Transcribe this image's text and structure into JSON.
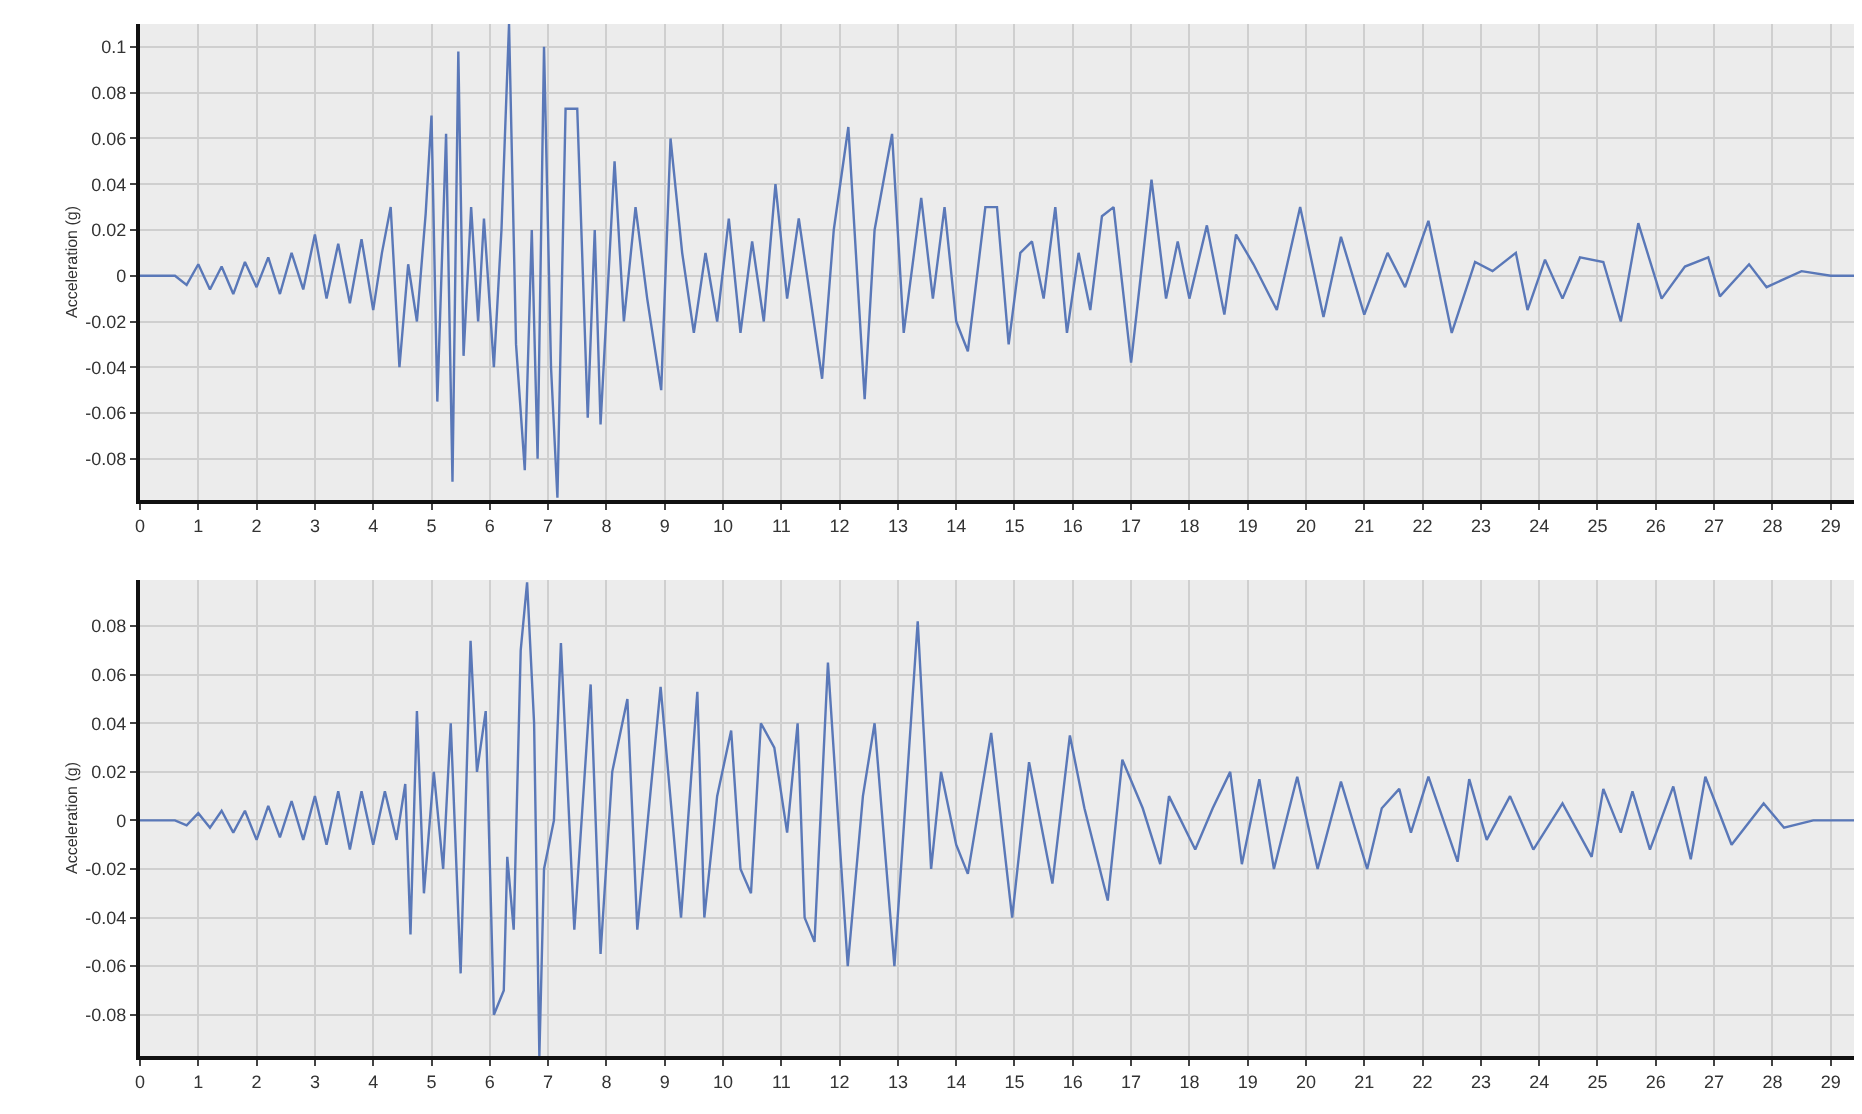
{
  "chart_data": [
    {
      "type": "line",
      "ylabel": "Acceleration (g)",
      "xlim": [
        0,
        29.4
      ],
      "xticks": [
        0,
        1,
        2,
        3,
        4,
        5,
        6,
        7,
        8,
        9,
        10,
        11,
        12,
        13,
        14,
        15,
        16,
        17,
        18,
        19,
        20,
        21,
        22,
        23,
        24,
        25,
        26,
        27,
        28,
        29
      ],
      "ylim": [
        -0.098,
        0.11
      ],
      "yticks": [
        -0.08,
        -0.06,
        -0.04,
        -0.02,
        0,
        0.02,
        0.04,
        0.06,
        0.08,
        0.1
      ],
      "grid": true,
      "x": [
        0,
        0.6,
        0.8,
        1.0,
        1.2,
        1.4,
        1.6,
        1.8,
        2.0,
        2.2,
        2.4,
        2.6,
        2.8,
        3.0,
        3.2,
        3.4,
        3.6,
        3.8,
        4.0,
        4.15,
        4.3,
        4.45,
        4.6,
        4.75,
        4.9,
        5.0,
        5.1,
        5.25,
        5.36,
        5.46,
        5.55,
        5.68,
        5.8,
        5.9,
        6.07,
        6.2,
        6.33,
        6.45,
        6.6,
        6.72,
        6.82,
        6.93,
        7.05,
        7.16,
        7.3,
        7.5,
        7.68,
        7.8,
        7.9,
        8.14,
        8.3,
        8.5,
        8.7,
        8.94,
        9.1,
        9.3,
        9.5,
        9.7,
        9.9,
        10.1,
        10.3,
        10.5,
        10.7,
        10.9,
        11.1,
        11.3,
        11.5,
        11.7,
        11.9,
        12.15,
        12.43,
        12.6,
        12.9,
        13.1,
        13.4,
        13.6,
        13.8,
        14.0,
        14.2,
        14.5,
        14.7,
        14.9,
        15.1,
        15.3,
        15.5,
        15.7,
        15.9,
        16.1,
        16.3,
        16.5,
        16.7,
        17.0,
        17.35,
        17.6,
        17.8,
        18.0,
        18.3,
        18.6,
        18.8,
        19.1,
        19.5,
        19.9,
        20.3,
        20.6,
        21.0,
        21.4,
        21.7,
        22.1,
        22.5,
        22.9,
        23.2,
        23.6,
        23.8,
        24.1,
        24.4,
        24.7,
        25.1,
        25.4,
        25.7,
        26.1,
        26.5,
        26.9,
        27.1,
        27.6,
        27.9,
        28.5,
        29.0,
        29.4
      ],
      "series": [
        {
          "color": "#5a78b8",
          "values": [
            0,
            0,
            -0.004,
            0.005,
            -0.006,
            0.004,
            -0.008,
            0.006,
            -0.005,
            0.008,
            -0.008,
            0.01,
            -0.006,
            0.018,
            -0.01,
            0.014,
            -0.012,
            0.016,
            -0.015,
            0.01,
            0.03,
            -0.04,
            0.005,
            -0.02,
            0.027,
            0.07,
            -0.055,
            0.062,
            -0.09,
            0.098,
            -0.035,
            0.03,
            -0.02,
            0.025,
            -0.04,
            0.02,
            0.11,
            -0.03,
            -0.085,
            0.02,
            -0.08,
            0.1,
            -0.04,
            -0.097,
            0.073,
            0.073,
            -0.062,
            0.02,
            -0.065,
            0.05,
            -0.02,
            0.03,
            -0.01,
            -0.05,
            0.06,
            0.01,
            -0.025,
            0.01,
            -0.02,
            0.025,
            -0.025,
            0.015,
            -0.02,
            0.04,
            -0.01,
            0.025,
            -0.01,
            -0.045,
            0.02,
            0.065,
            -0.054,
            0.02,
            0.062,
            -0.025,
            0.034,
            -0.01,
            0.03,
            -0.02,
            -0.033,
            0.03,
            0.03,
            -0.03,
            0.01,
            0.015,
            -0.01,
            0.03,
            -0.025,
            0.01,
            -0.015,
            0.026,
            0.03,
            -0.038,
            0.042,
            -0.01,
            0.015,
            -0.01,
            0.022,
            -0.017,
            0.018,
            0.005,
            -0.015,
            0.03,
            -0.018,
            0.017,
            -0.017,
            0.01,
            -0.005,
            0.024,
            -0.025,
            0.006,
            0.002,
            0.01,
            -0.015,
            0.007,
            -0.01,
            0.008,
            0.006,
            -0.02,
            0.023,
            -0.01,
            0.004,
            0.008,
            -0.009,
            0.005,
            -0.005,
            0.002,
            0,
            0
          ]
        }
      ]
    },
    {
      "type": "line",
      "ylabel": "Acceleration (g)",
      "xlim": [
        0,
        29.4
      ],
      "xticks": [
        0,
        1,
        2,
        3,
        4,
        5,
        6,
        7,
        8,
        9,
        10,
        11,
        12,
        13,
        14,
        15,
        16,
        17,
        18,
        19,
        20,
        21,
        22,
        23,
        24,
        25,
        26,
        27,
        28,
        29
      ],
      "ylim": [
        -0.097,
        0.099
      ],
      "yticks": [
        -0.08,
        -0.06,
        -0.04,
        -0.02,
        0,
        0.02,
        0.04,
        0.06,
        0.08
      ],
      "grid": true,
      "x": [
        0,
        0.6,
        0.8,
        1.0,
        1.2,
        1.4,
        1.6,
        1.8,
        2.0,
        2.2,
        2.4,
        2.6,
        2.8,
        3.0,
        3.2,
        3.4,
        3.6,
        3.8,
        4.0,
        4.2,
        4.4,
        4.55,
        4.64,
        4.75,
        4.87,
        5.04,
        5.2,
        5.33,
        5.5,
        5.67,
        5.78,
        5.93,
        6.07,
        6.24,
        6.3,
        6.41,
        6.53,
        6.64,
        6.76,
        6.85,
        6.93,
        7.1,
        7.22,
        7.45,
        7.73,
        7.9,
        8.1,
        8.36,
        8.53,
        8.75,
        8.93,
        9.28,
        9.56,
        9.68,
        9.9,
        10.14,
        10.3,
        10.48,
        10.65,
        10.88,
        11.1,
        11.28,
        11.4,
        11.57,
        11.8,
        12.14,
        12.4,
        12.6,
        12.94,
        13.34,
        13.57,
        13.74,
        14.0,
        14.2,
        14.6,
        14.96,
        15.25,
        15.65,
        15.95,
        16.2,
        16.6,
        16.85,
        17.2,
        17.5,
        17.65,
        18.1,
        18.4,
        18.7,
        18.9,
        19.2,
        19.45,
        19.85,
        20.2,
        20.6,
        21.05,
        21.3,
        21.6,
        21.8,
        22.1,
        22.6,
        22.8,
        23.1,
        23.5,
        23.9,
        24.4,
        24.9,
        25.1,
        25.4,
        25.6,
        25.9,
        26.3,
        26.6,
        26.85,
        27.3,
        27.85,
        28.2,
        28.7,
        29.4
      ],
      "series": [
        {
          "color": "#5a78b8",
          "values": [
            0,
            0,
            -0.002,
            0.003,
            -0.003,
            0.004,
            -0.005,
            0.004,
            -0.008,
            0.006,
            -0.007,
            0.008,
            -0.008,
            0.01,
            -0.01,
            0.012,
            -0.012,
            0.012,
            -0.01,
            0.012,
            -0.008,
            0.015,
            -0.047,
            0.045,
            -0.03,
            0.02,
            -0.02,
            0.04,
            -0.063,
            0.074,
            0.02,
            0.045,
            -0.08,
            -0.07,
            -0.015,
            -0.045,
            0.07,
            0.098,
            0.04,
            -0.097,
            -0.02,
            0,
            0.073,
            -0.045,
            0.056,
            -0.055,
            0.02,
            0.05,
            -0.045,
            0.01,
            0.055,
            -0.04,
            0.053,
            -0.04,
            0.01,
            0.037,
            -0.02,
            -0.03,
            0.04,
            0.03,
            -0.005,
            0.04,
            -0.04,
            -0.05,
            0.065,
            -0.06,
            0.01,
            0.04,
            -0.06,
            0.082,
            -0.02,
            0.02,
            -0.01,
            -0.022,
            0.036,
            -0.04,
            0.024,
            -0.026,
            0.035,
            0.005,
            -0.033,
            0.025,
            0.005,
            -0.018,
            0.01,
            -0.012,
            0.005,
            0.02,
            -0.018,
            0.017,
            -0.02,
            0.018,
            -0.02,
            0.016,
            -0.02,
            0.005,
            0.013,
            -0.005,
            0.018,
            -0.017,
            0.017,
            -0.008,
            0.01,
            -0.012,
            0.007,
            -0.015,
            0.013,
            -0.005,
            0.012,
            -0.012,
            0.014,
            -0.016,
            0.018,
            -0.01,
            0.007,
            -0.003,
            0,
            0
          ]
        }
      ]
    }
  ]
}
